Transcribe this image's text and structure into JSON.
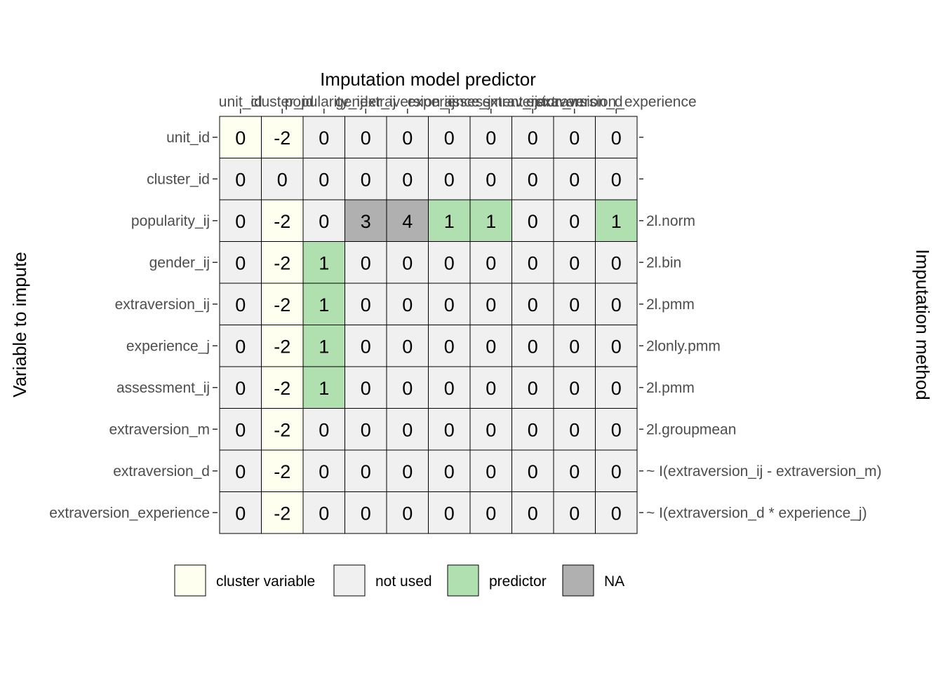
{
  "chart_data": {
    "type": "heatmap",
    "title": "Imputation model predictor",
    "xlabel": "Imputation model predictor",
    "ylabel": "Variable to impute",
    "secondary_ylabel": "Imputation method",
    "columns": [
      "unit_id",
      "cluster_id",
      "popularity_ij",
      "gender_ij",
      "extraversion_ij",
      "experience_j",
      "assessment_ij",
      "extraversion_m",
      "extraversion_d",
      "extraversion_experience"
    ],
    "rows": [
      "unit_id",
      "cluster_id",
      "popularity_ij",
      "gender_ij",
      "extraversion_ij",
      "experience_j",
      "assessment_ij",
      "extraversion_m",
      "extraversion_d",
      "extraversion_experience"
    ],
    "methods": [
      "",
      "",
      "2l.norm",
      "2l.bin",
      "2l.pmm",
      "2lonly.pmm",
      "2l.pmm",
      "2l.groupmean",
      "~ I(extraversion_ij - extraversion_m)",
      "~ I(extraversion_d * experience_j)"
    ],
    "values": [
      [
        0,
        -2,
        0,
        0,
        0,
        0,
        0,
        0,
        0,
        0
      ],
      [
        0,
        0,
        0,
        0,
        0,
        0,
        0,
        0,
        0,
        0
      ],
      [
        0,
        -2,
        0,
        3,
        4,
        1,
        1,
        0,
        0,
        1
      ],
      [
        0,
        -2,
        1,
        0,
        0,
        0,
        0,
        0,
        0,
        0
      ],
      [
        0,
        -2,
        1,
        0,
        0,
        0,
        0,
        0,
        0,
        0
      ],
      [
        0,
        -2,
        1,
        0,
        0,
        0,
        0,
        0,
        0,
        0
      ],
      [
        0,
        -2,
        1,
        0,
        0,
        0,
        0,
        0,
        0,
        0
      ],
      [
        0,
        -2,
        0,
        0,
        0,
        0,
        0,
        0,
        0,
        0
      ],
      [
        0,
        -2,
        0,
        0,
        0,
        0,
        0,
        0,
        0,
        0
      ],
      [
        0,
        -2,
        0,
        0,
        0,
        0,
        0,
        0,
        0,
        0
      ]
    ],
    "categories": [
      [
        null,
        "cluster variable",
        "not used",
        "not used",
        "not used",
        "not used",
        "not used",
        "not used",
        "not used",
        "not used"
      ],
      [
        "not used",
        "not used",
        "not used",
        "not used",
        "not used",
        "not used",
        "not used",
        "not used",
        "not used",
        "not used"
      ],
      [
        "not used",
        "cluster variable",
        "not used",
        "NA",
        "NA",
        "predictor",
        "predictor",
        "not used",
        "not used",
        "predictor"
      ],
      [
        "not used",
        "cluster variable",
        "predictor",
        "not used",
        "not used",
        "not used",
        "not used",
        "not used",
        "not used",
        "not used"
      ],
      [
        "not used",
        "cluster variable",
        "predictor",
        "not used",
        "not used",
        "not used",
        "not used",
        "not used",
        "not used",
        "not used"
      ],
      [
        "not used",
        "cluster variable",
        "predictor",
        "not used",
        "not used",
        "not used",
        "not used",
        "not used",
        "not used",
        "not used"
      ],
      [
        "not used",
        "cluster variable",
        "predictor",
        "not used",
        "not used",
        "not used",
        "not used",
        "not used",
        "not used",
        "not used"
      ],
      [
        "not used",
        "cluster variable",
        "not used",
        "not used",
        "not used",
        "not used",
        "not used",
        "not used",
        "not used",
        "not used"
      ],
      [
        "not used",
        "cluster variable",
        "not used",
        "not used",
        "not used",
        "not used",
        "not used",
        "not used",
        "not used",
        "not used"
      ],
      [
        "not used",
        "cluster variable",
        "not used",
        "not used",
        "not used",
        "not used",
        "not used",
        "not used",
        "not used",
        "not used"
      ]
    ],
    "legend": {
      "position": "bottom",
      "items": [
        {
          "label": "cluster variable",
          "color": "#fffff0"
        },
        {
          "label": "not used",
          "color": "#f0f0f0"
        },
        {
          "label": "predictor",
          "color": "#b0e0b0"
        },
        {
          "label": "NA",
          "color": "#b0b0b0"
        }
      ]
    },
    "grid": false
  }
}
